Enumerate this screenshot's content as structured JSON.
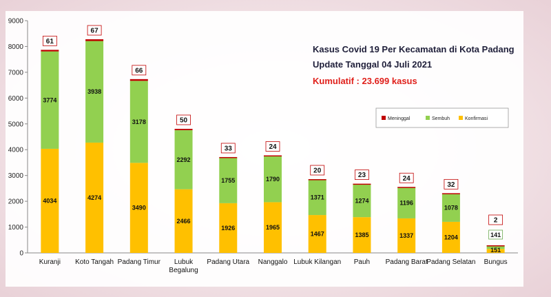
{
  "chart_data": {
    "type": "bar",
    "stacked": true,
    "title": "Kasus Covid 19 Per Kecamatan di Kota Padang",
    "subtitle": "Update Tanggal  04 Juli 2021",
    "cumulative": "Kumulatif : 23.699 kasus",
    "ylim": [
      0,
      9000
    ],
    "yticks": [
      "0",
      "1000",
      "2000",
      "3000",
      "4000",
      "5000",
      "6000",
      "7000",
      "8000",
      "9000"
    ],
    "grid": false,
    "legend_position": "top-right",
    "categories": [
      "Kuranji",
      "Koto Tangah",
      "Padang Timur",
      "Lubuk Begalung",
      "Padang Utara",
      "Nanggalo",
      "Lubuk Kilangan",
      "Pauh",
      "Padang Barat",
      "Padang Selatan",
      "Bungus"
    ],
    "series": [
      {
        "name": "Konfirmasi",
        "color": "#ffc000",
        "values": [
          4034,
          4274,
          3490,
          2466,
          1926,
          1965,
          1467,
          1385,
          1337,
          1204,
          151
        ]
      },
      {
        "name": "Sembuh",
        "color": "#92d050",
        "values": [
          3774,
          3938,
          3178,
          2292,
          1755,
          1790,
          1371,
          1274,
          1196,
          1078,
          141
        ]
      },
      {
        "name": "Meninggal",
        "color": "#c00000",
        "values": [
          61,
          67,
          66,
          50,
          33,
          24,
          20,
          23,
          24,
          32,
          2
        ]
      }
    ],
    "konfirmasi_labels": [
      "4034",
      "4274",
      "3490",
      "2466",
      "1926",
      "1965",
      "1467",
      "1385",
      "1337",
      "1204",
      "151"
    ],
    "sembuh_labels": [
      "3774",
      "3938",
      "3178",
      "2292",
      "1755",
      "1790",
      "1371",
      "1274",
      "1196",
      "1078",
      "141"
    ],
    "meninggal_labels": [
      "61",
      "67",
      "66",
      "50",
      "33",
      "24",
      "20",
      "23",
      "24",
      "32",
      "2"
    ]
  }
}
